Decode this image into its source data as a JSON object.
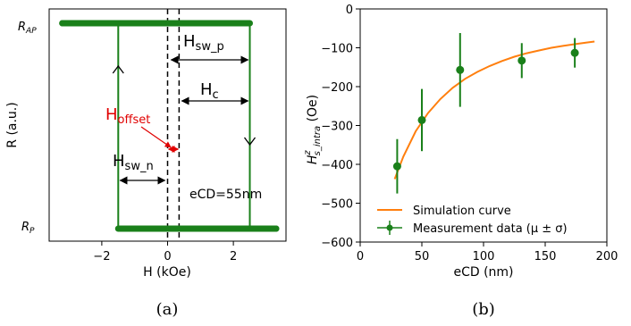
{
  "chart_data": [
    {
      "type": "line",
      "panel": "(a)",
      "xlabel": "H (kOe)",
      "ylabel": "R (a.u.)",
      "xlim": [
        -3.6,
        3.6
      ],
      "xticks": [
        -2,
        0,
        2
      ],
      "ytick_labels": {
        "high": "R",
        "high_sub": "AP",
        "low": "R",
        "low_sub": "P"
      },
      "series": [
        {
          "name": "",
          "color": "#1a801a",
          "points": [
            [
              -3.2,
              1
            ],
            [
              2.5,
              1
            ],
            [
              2.5,
              0
            ],
            [
              3.3,
              0
            ]
          ]
        },
        {
          "name": "",
          "color": "#1a801a",
          "points": [
            [
              3.3,
              0
            ],
            [
              -1.5,
              0
            ],
            [
              -1.5,
              1
            ],
            [
              -3.2,
              1
            ]
          ]
        }
      ],
      "vertical_lines": [
        0,
        0.35
      ],
      "annotations": {
        "hsw_p": "H",
        "hsw_p_sub": "sw_p",
        "hc": "H",
        "hc_sub": "c",
        "hoffset": "H",
        "hoffset_sub": "offset",
        "hsw_n": "H",
        "hsw_n_sub": "sw_n",
        "ecd": "eCD=55nm"
      }
    },
    {
      "type": "scatter",
      "panel": "(b)",
      "xlabel": "eCD (nm)",
      "ylabel_main": "H",
      "ylabel_sup": "z",
      "ylabel_sub": "s_intra",
      "ylabel_unit": " (Oe)",
      "xlim": [
        0,
        200
      ],
      "ylim": [
        -600,
        0
      ],
      "xticks": [
        0,
        50,
        100,
        150,
        200
      ],
      "yticks": [
        0,
        -100,
        -200,
        -300,
        -400,
        -500,
        -600
      ],
      "series": [
        {
          "name": "Simulation curve",
          "type": "line",
          "color": "#ff7f0e",
          "x": [
            28,
            35,
            45,
            55,
            65,
            75,
            85,
            95,
            105,
            115,
            125,
            135,
            145,
            155,
            165,
            175,
            185,
            190
          ],
          "y": [
            -438,
            -380,
            -315,
            -268,
            -232,
            -203,
            -180,
            -162,
            -147,
            -134,
            -123,
            -114,
            -107,
            -100,
            -95,
            -90,
            -86,
            -84
          ]
        },
        {
          "name": "Measurement data (μ ± σ)",
          "type": "errorbar",
          "color": "#1a801a",
          "x": [
            30,
            50,
            81,
            131,
            174
          ],
          "y": [
            -405,
            -286,
            -157,
            -133,
            -113
          ],
          "yerr": [
            70,
            80,
            95,
            45,
            38
          ],
          "xerr": [
            3,
            3,
            3,
            3,
            3
          ]
        }
      ]
    }
  ],
  "captions": {
    "a": "(a)",
    "b": "(b)"
  }
}
